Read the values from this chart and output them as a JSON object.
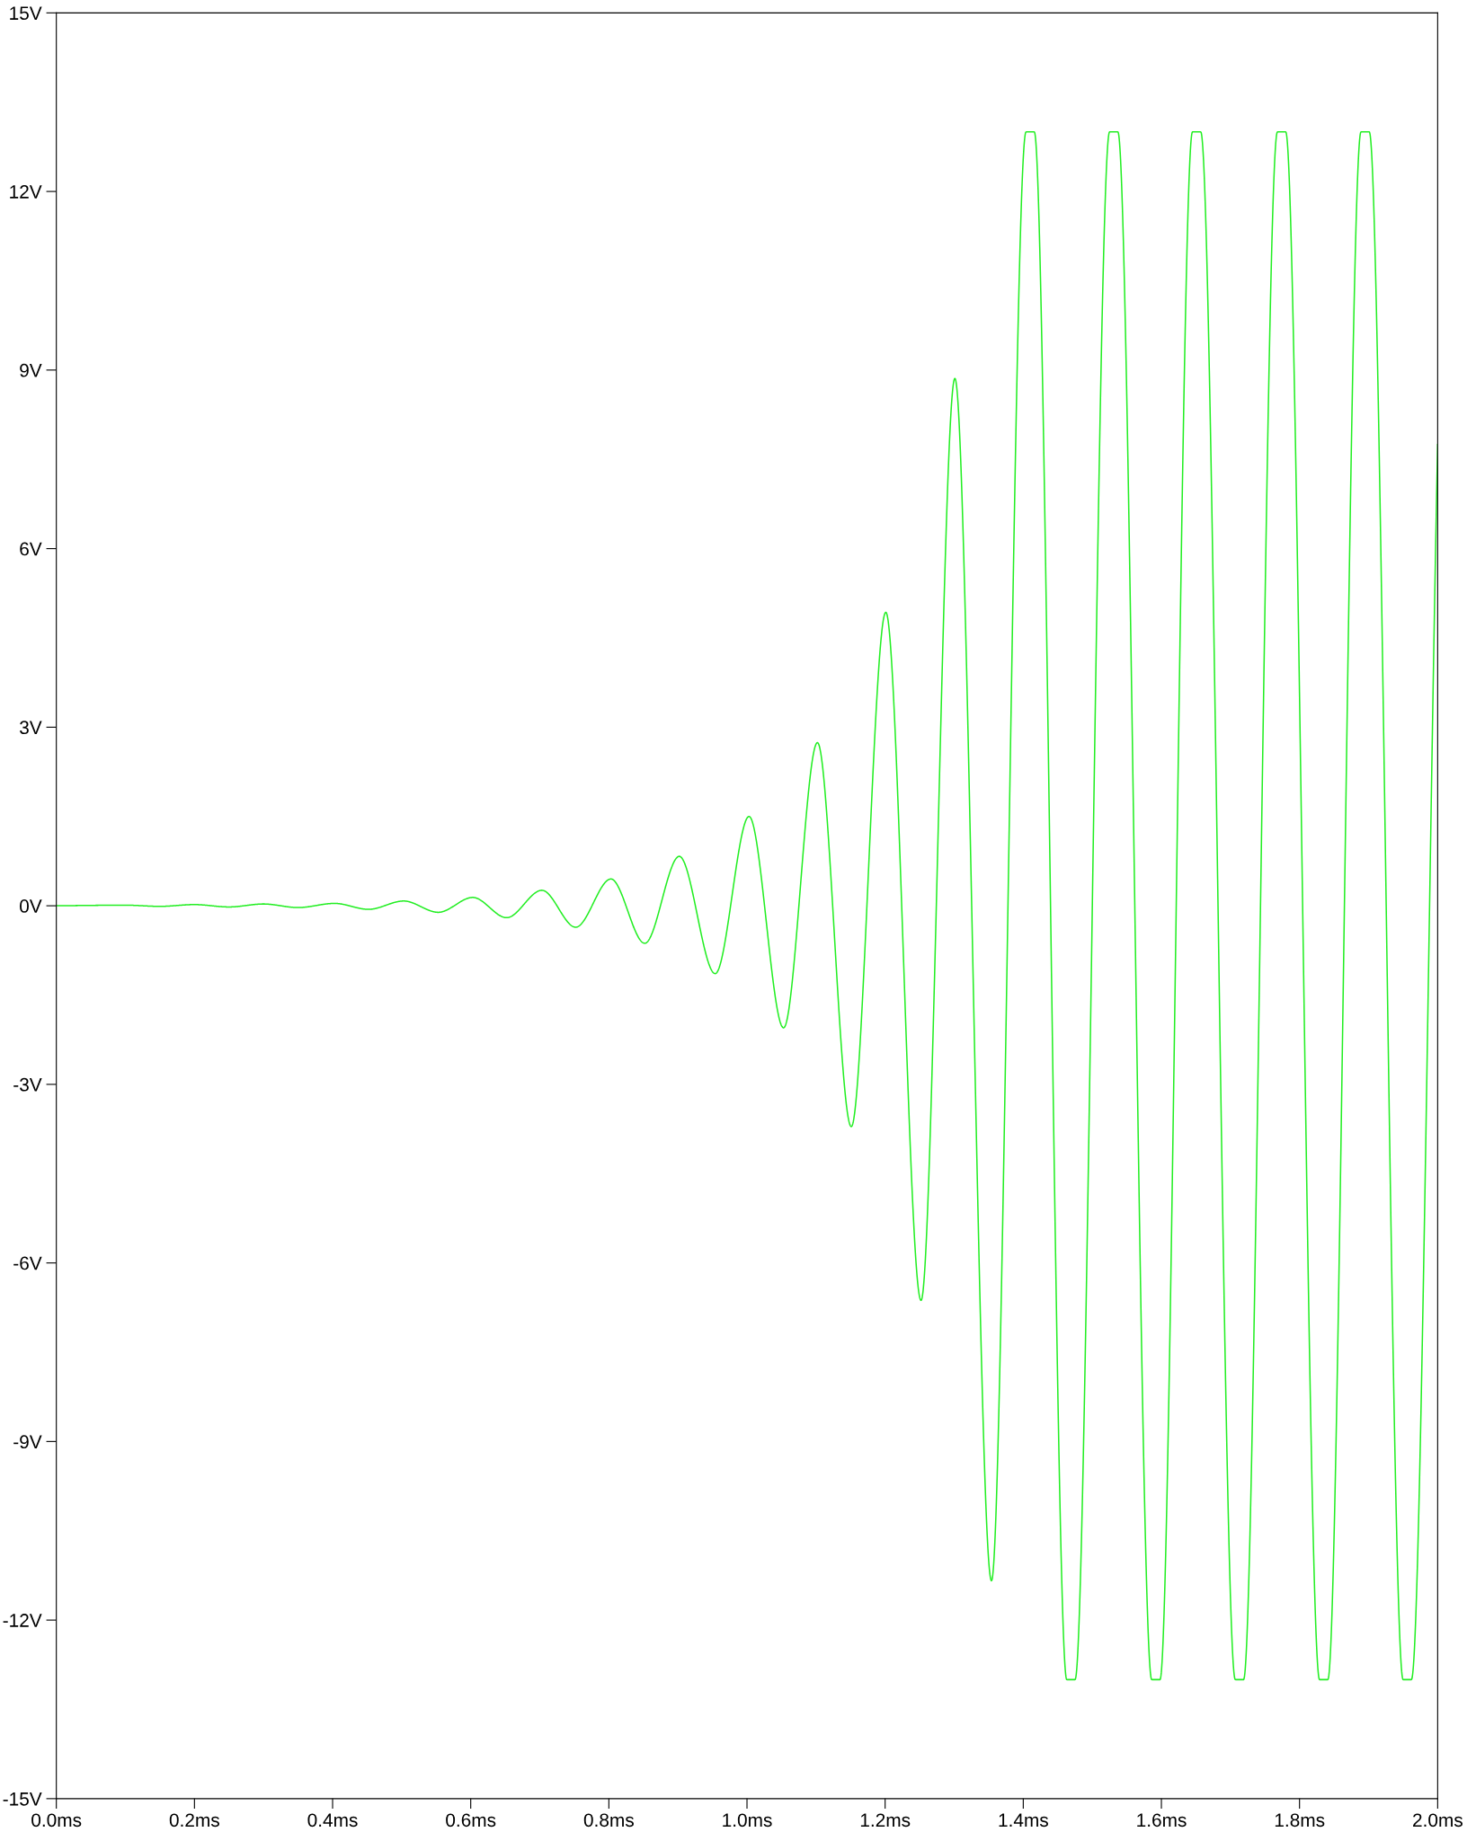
{
  "chart_data": {
    "type": "line",
    "grid": false,
    "legend": false,
    "marker": "none",
    "line_style": "solid",
    "x": [
      0,
      0.1,
      0.15,
      0.2,
      0.25,
      0.3,
      0.35,
      0.403,
      0.452,
      0.503,
      0.553,
      0.603,
      0.652,
      0.703,
      0.752,
      0.803,
      0.852,
      0.902,
      0.954,
      1.003,
      1.053,
      1.102,
      1.151,
      1.201,
      1.252,
      1.301,
      1.354,
      1.404,
      1.416,
      1.463,
      1.475,
      1.525,
      1.537,
      1.586,
      1.598,
      1.645,
      1.657,
      1.707,
      1.719,
      1.768,
      1.78,
      1.829,
      1.841,
      1.889,
      1.901,
      1.95,
      1.962,
      2.0
    ],
    "series": [
      {
        "color": "#22ee22",
        "values": [
          0,
          0.01,
          -0.01,
          0.02,
          -0.02,
          0.03,
          -0.03,
          0.04,
          -0.06,
          0.08,
          -0.11,
          0.14,
          -0.2,
          0.26,
          -0.36,
          0.45,
          -0.63,
          0.83,
          -1.14,
          1.5,
          -2.05,
          2.74,
          -3.71,
          4.93,
          -6.63,
          8.86,
          -11.34,
          13,
          13,
          -13,
          -13,
          13,
          13,
          -13,
          -13,
          13,
          13,
          -13,
          -13,
          13,
          13,
          -13,
          -13,
          13,
          13,
          -13,
          -13,
          7.75
        ]
      }
    ],
    "xlim": [
      0,
      2.0
    ],
    "xticks": [
      {
        "value": 0,
        "label": "0.0ms"
      },
      {
        "value": 0.2,
        "label": "0.2ms"
      },
      {
        "value": 0.4,
        "label": "0.4ms"
      },
      {
        "value": 0.6,
        "label": "0.6ms"
      },
      {
        "value": 0.8,
        "label": "0.8ms"
      },
      {
        "value": 1.0,
        "label": "1.0ms"
      },
      {
        "value": 1.2,
        "label": "1.2ms"
      },
      {
        "value": 1.4,
        "label": "1.4ms"
      },
      {
        "value": 1.6,
        "label": "1.6ms"
      },
      {
        "value": 1.8,
        "label": "1.8ms"
      },
      {
        "value": 2.0,
        "label": "2.0ms"
      }
    ],
    "ylim": [
      -15,
      15
    ],
    "yticks": [
      {
        "value": -15,
        "label": "-15V"
      },
      {
        "value": -12,
        "label": "-12V"
      },
      {
        "value": -9,
        "label": "-9V"
      },
      {
        "value": -6,
        "label": "-6V"
      },
      {
        "value": -3,
        "label": "-3V"
      },
      {
        "value": 0,
        "label": "0V"
      },
      {
        "value": 3,
        "label": "3V"
      },
      {
        "value": 6,
        "label": "6V"
      },
      {
        "value": 9,
        "label": "9V"
      },
      {
        "value": 12,
        "label": "12V"
      },
      {
        "value": 15,
        "label": "15V"
      }
    ]
  }
}
